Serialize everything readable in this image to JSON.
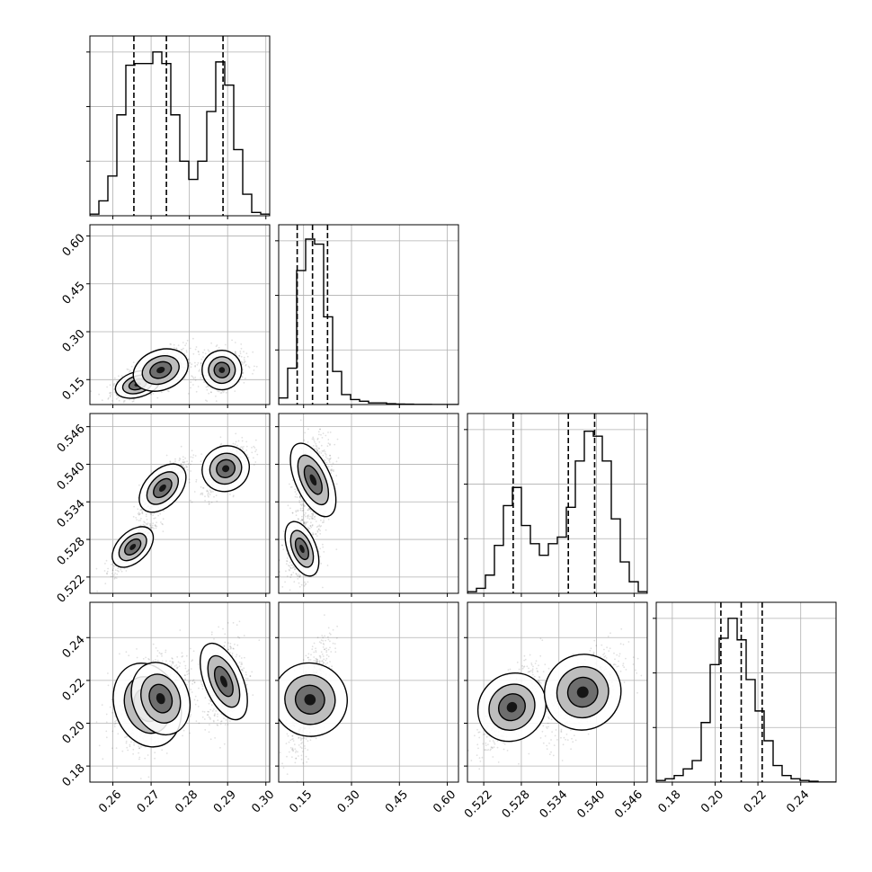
{
  "chart_data": {
    "type": "corner",
    "n_params": 4,
    "grid": true,
    "colors": {
      "line": "#000000",
      "grid": "#b0b0b0",
      "background": "#ffffff"
    },
    "params": [
      {
        "range": [
          0.254,
          0.301
        ],
        "ticks": [
          0.26,
          0.27,
          0.28,
          0.29,
          0.3
        ],
        "tick_labels": [
          "0.26",
          "0.27",
          "0.28",
          "0.29",
          "0.30"
        ],
        "quantiles": [
          0.2655,
          0.274,
          0.2888
        ]
      },
      {
        "range": [
          0.072,
          0.635
        ],
        "ticks": [
          0.15,
          0.3,
          0.45,
          0.6
        ],
        "tick_labels": [
          "0.15",
          "0.30",
          "0.45",
          "0.60"
        ],
        "quantiles": [
          0.13,
          0.178,
          0.225
        ]
      },
      {
        "range": [
          0.5194,
          0.5481
        ],
        "ticks": [
          0.522,
          0.528,
          0.534,
          0.54,
          0.546
        ],
        "tick_labels": [
          "0.522",
          "0.528",
          "0.534",
          "0.540",
          "0.546"
        ],
        "quantiles": [
          0.5267,
          0.5355,
          0.5397
        ]
      },
      {
        "range": [
          0.1725,
          0.2565
        ],
        "ticks": [
          0.18,
          0.2,
          0.22,
          0.24
        ],
        "tick_labels": [
          "0.18",
          "0.20",
          "0.22",
          "0.24"
        ],
        "quantiles": [
          0.2027,
          0.2122,
          0.222
        ]
      }
    ],
    "diagonal_histograms": [
      {
        "param": 0,
        "heights": [
          0.01,
          0.09,
          0.24,
          0.61,
          0.91,
          0.92,
          0.92,
          0.99,
          0.92,
          0.61,
          0.33,
          0.22,
          0.33,
          0.63,
          0.93,
          0.79,
          0.4,
          0.13,
          0.02,
          0.01
        ]
      },
      {
        "param": 1,
        "heights": [
          0.04,
          0.22,
          0.81,
          1.0,
          0.97,
          0.53,
          0.2,
          0.06,
          0.03,
          0.02,
          0.01,
          0.01,
          0.005,
          0.003,
          0.002,
          0.001,
          0.001,
          0.0,
          0.0,
          0.0
        ]
      },
      {
        "param": 2,
        "heights": [
          0.01,
          0.03,
          0.11,
          0.29,
          0.53,
          0.64,
          0.41,
          0.3,
          0.23,
          0.3,
          0.34,
          0.52,
          0.8,
          0.98,
          0.95,
          0.8,
          0.45,
          0.19,
          0.07,
          0.01
        ]
      },
      {
        "param": 3,
        "heights": [
          0.01,
          0.02,
          0.04,
          0.08,
          0.13,
          0.36,
          0.71,
          0.87,
          0.99,
          0.86,
          0.62,
          0.43,
          0.25,
          0.1,
          0.04,
          0.02,
          0.01,
          0.005,
          0.0,
          0.0
        ]
      }
    ],
    "pair_panels": [
      {
        "x_param": 0,
        "y_param": 1,
        "modes": [
          {
            "mu": [
              0.2665,
              0.135
            ],
            "sd": [
              0.0025,
              0.016
            ],
            "corr": 0.55,
            "weight": 0.7
          },
          {
            "mu": [
              0.2725,
              0.18
            ],
            "sd": [
              0.003,
              0.025
            ],
            "corr": 0.55,
            "weight": 0.8
          },
          {
            "mu": [
              0.2885,
              0.18
            ],
            "sd": [
              0.0022,
              0.022
            ],
            "corr": 0.25,
            "weight": 0.75
          }
        ]
      },
      {
        "x_param": 0,
        "y_param": 2,
        "modes": [
          {
            "mu": [
              0.2652,
              0.5268
            ],
            "sd": [
              0.002,
              0.0014
            ],
            "corr": 0.85,
            "weight": 0.75
          },
          {
            "mu": [
              0.273,
              0.5362
            ],
            "sd": [
              0.0022,
              0.0017
            ],
            "corr": 0.85,
            "weight": 0.85
          },
          {
            "mu": [
              0.2895,
              0.5393
            ],
            "sd": [
              0.0023,
              0.0015
            ],
            "corr": 0.6,
            "weight": 0.75
          }
        ]
      },
      {
        "x_param": 1,
        "y_param": 2,
        "modes": [
          {
            "mu": [
              0.145,
              0.5265
            ],
            "sd": [
              0.018,
              0.0018
            ],
            "corr": 0.2,
            "weight": 0.7
          },
          {
            "mu": [
              0.18,
              0.5375
            ],
            "sd": [
              0.022,
              0.0025
            ],
            "corr": 0.2,
            "weight": 0.9
          }
        ]
      },
      {
        "x_param": 0,
        "y_param": 3,
        "modes": [
          {
            "mu": [
              0.269,
              0.2085
            ],
            "sd": [
              0.0035,
              0.0075
            ],
            "corr": 0.3,
            "weight": 0.75
          },
          {
            "mu": [
              0.2725,
              0.2115
            ],
            "sd": [
              0.003,
              0.0065
            ],
            "corr": 0.3,
            "weight": 0.8
          },
          {
            "mu": [
              0.289,
              0.2195
            ],
            "sd": [
              0.002,
              0.0075
            ],
            "corr": 0.2,
            "weight": 0.7
          }
        ]
      },
      {
        "x_param": 1,
        "y_param": 3,
        "modes": [
          {
            "mu": [
              0.17,
              0.211
            ],
            "sd": [
              0.022,
              0.0095
            ],
            "corr": 0.7,
            "weight": 1.0
          }
        ]
      },
      {
        "x_param": 2,
        "y_param": 3,
        "modes": [
          {
            "mu": [
              0.5265,
              0.2075
            ],
            "sd": [
              0.0017,
              0.0075
            ],
            "corr": 0.7,
            "weight": 0.7
          },
          {
            "mu": [
              0.5378,
              0.2145
            ],
            "sd": [
              0.0022,
              0.0075
            ],
            "corr": 0.6,
            "weight": 0.95
          }
        ]
      }
    ]
  }
}
